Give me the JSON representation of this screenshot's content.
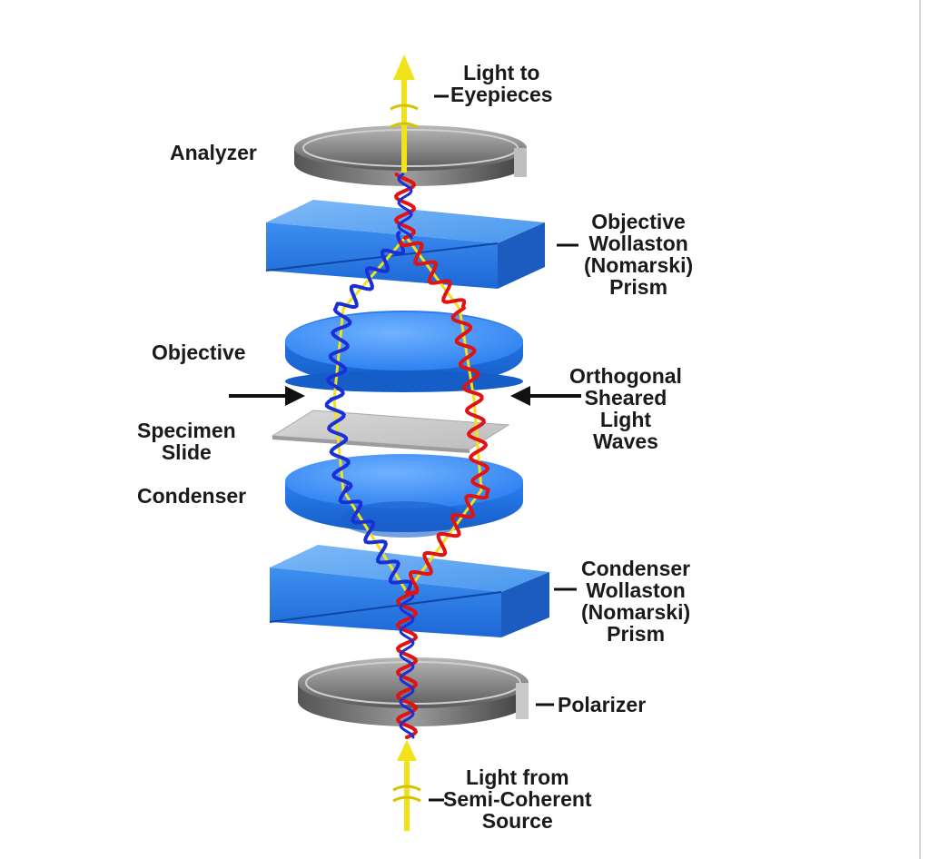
{
  "labels": {
    "light_to_eyepieces": [
      "Light to",
      "Eyepieces"
    ],
    "analyzer": "Analyzer",
    "objective_prism": [
      "Objective",
      "Wollaston",
      "(Nomarski)",
      "Prism"
    ],
    "objective": "Objective",
    "orthogonal": [
      "Orthogonal",
      "Sheared",
      "Light",
      "Waves"
    ],
    "specimen_slide": [
      "Specimen",
      "Slide"
    ],
    "condenser": "Condenser",
    "condenser_prism": [
      "Condenser",
      "Wollaston",
      "(Nomarski)",
      "Prism"
    ],
    "polarizer": "Polarizer",
    "light_from_source": [
      "Light from",
      "Semi-Coherent",
      "Source"
    ]
  },
  "colors": {
    "prism": "#2a7fe6",
    "lens": "#2f86ee",
    "wave_red": "#e01212",
    "wave_blue": "#1a2fd6",
    "wave_yellow": "#f2e21a",
    "disc_gray": "#7a7a7a"
  }
}
